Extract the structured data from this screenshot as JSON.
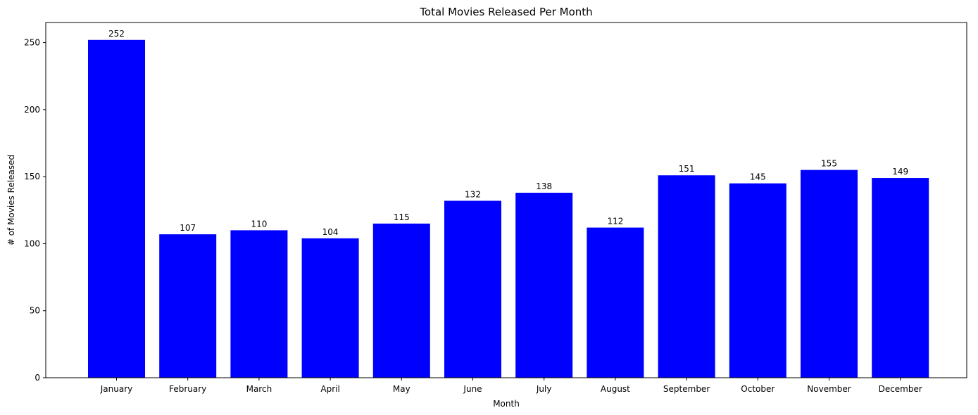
{
  "chart_data": {
    "type": "bar",
    "title": "Total Movies Released Per Month",
    "xlabel": "Month",
    "ylabel": "# of Movies Released",
    "categories": [
      "January",
      "February",
      "March",
      "April",
      "May",
      "June",
      "July",
      "August",
      "September",
      "October",
      "November",
      "December"
    ],
    "values": [
      252,
      107,
      110,
      104,
      115,
      132,
      138,
      112,
      151,
      145,
      155,
      149
    ],
    "ylim": [
      0,
      265
    ],
    "yticks": [
      0,
      50,
      100,
      150,
      200,
      250
    ],
    "bar_color": "#0000ff",
    "grid": false,
    "data_labels": true
  }
}
